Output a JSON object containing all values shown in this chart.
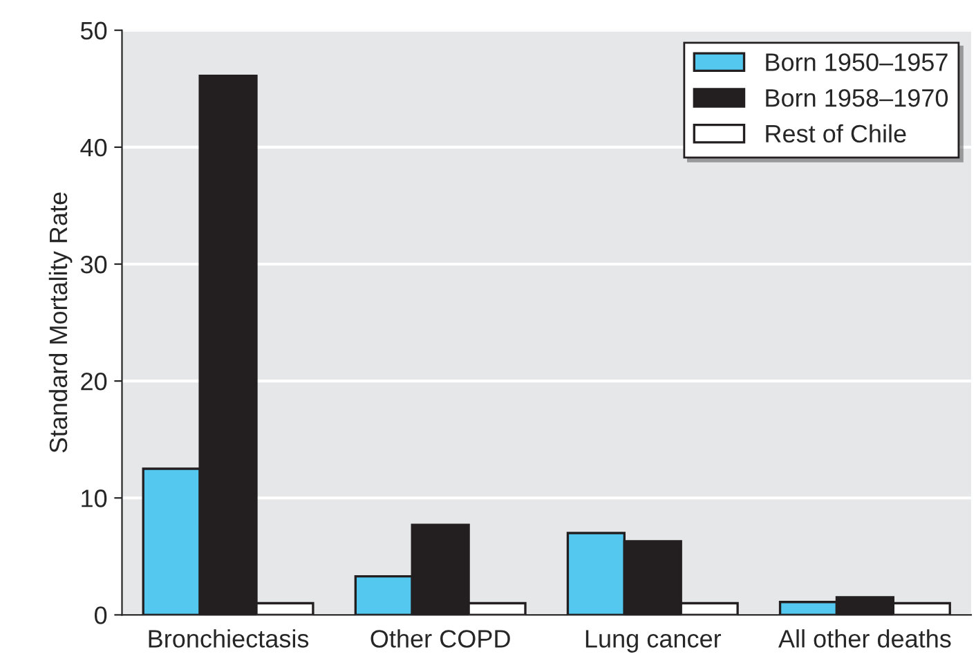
{
  "chart_data": {
    "type": "bar",
    "ylabel": "Standard Mortality Rate",
    "categories": [
      "Bronchiectasis",
      "Other COPD",
      "Lung cancer",
      "All other deaths"
    ],
    "series": [
      {
        "name": "Born 1950–1957",
        "color": "#55c8f0",
        "values": [
          12.5,
          3.3,
          7.0,
          1.1
        ]
      },
      {
        "name": "Born 1958–1970",
        "color": "#231f20",
        "values": [
          46.1,
          7.7,
          6.3,
          1.5
        ]
      },
      {
        "name": "Rest of Chile",
        "color": "#ffffff",
        "values": [
          1.0,
          1.0,
          1.0,
          1.0
        ]
      }
    ],
    "ylim": [
      0,
      50
    ],
    "yticks": [
      0,
      10,
      20,
      30,
      40,
      50
    ],
    "grid": "y",
    "legend": "top right"
  }
}
